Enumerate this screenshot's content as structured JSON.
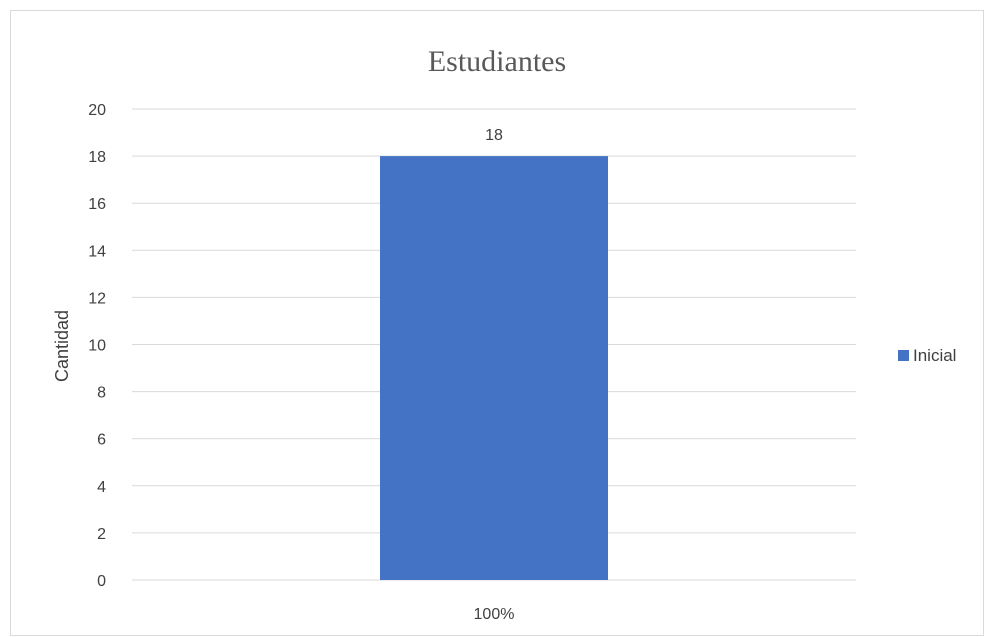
{
  "chart_data": {
    "type": "bar",
    "title": "Estudiantes",
    "xlabel": "",
    "ylabel": "Cantidad",
    "categories": [
      "100%"
    ],
    "series": [
      {
        "name": "Inicial",
        "values": [
          18
        ],
        "color": "#4472C4"
      }
    ],
    "ylim": [
      0,
      20
    ],
    "yticks": [
      0,
      2,
      4,
      6,
      8,
      10,
      12,
      14,
      16,
      18,
      20
    ],
    "grid": true,
    "legend_position": "right",
    "data_labels": [
      "18"
    ]
  }
}
